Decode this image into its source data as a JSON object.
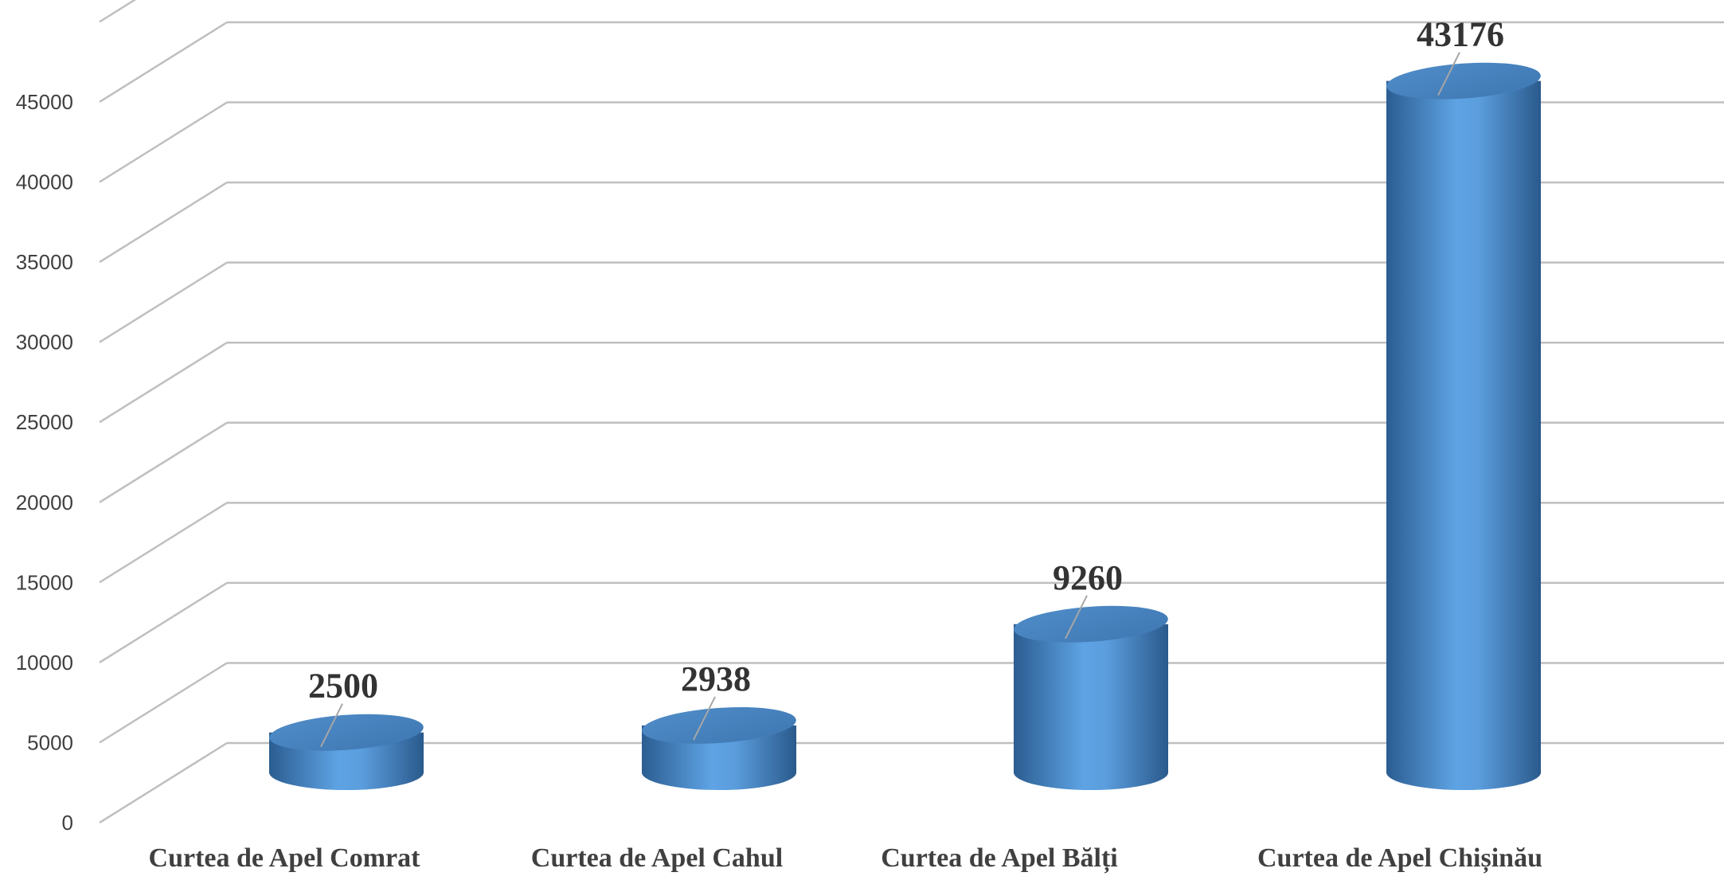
{
  "chart_data": {
    "type": "bar",
    "style": "3d-cylinder",
    "categories": [
      "Curtea de Apel Comrat",
      "Curtea de Apel Cahul",
      "Curtea de Apel Bălți",
      "Curtea de Apel Chișinău"
    ],
    "series": [
      {
        "values": [
          2500,
          2938,
          9260,
          43176
        ]
      }
    ],
    "data_labels": [
      "2500",
      "2938",
      "9260",
      "43176"
    ],
    "y_ticks": [
      "0",
      "5000",
      "10000",
      "15000",
      "20000",
      "25000",
      "30000",
      "35000",
      "40000",
      "45000"
    ],
    "ylim": [
      0,
      50000
    ],
    "grid": true,
    "legend": "none",
    "colors": {
      "bar": "#5b9bd5",
      "bar_dark": "#2e5f94",
      "grid": "#bfbfbf"
    }
  }
}
